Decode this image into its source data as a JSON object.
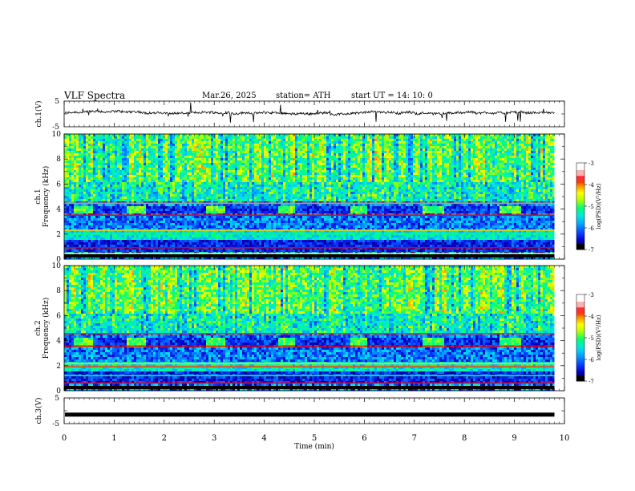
{
  "header": {
    "title": "VLF  Spectra",
    "date": "Mar.26, 2025",
    "station": "station= ATH",
    "start": "start  UT  =   14: 10: 0"
  },
  "colorbar": {
    "label": "log(PSD)(V²/Hz)",
    "ticks": [
      "-3",
      "-4",
      "-5",
      "-6",
      "-7"
    ],
    "colors": [
      "#000000",
      "#00008f",
      "#0000ff",
      "#00a0ff",
      "#00e0e0",
      "#00ff80",
      "#ffff00",
      "#ff8000",
      "#e00000",
      "#ffa0a0",
      "#ffffff"
    ]
  },
  "chart_data": [
    {
      "type": "line",
      "panel": "ch1-waveform",
      "ylabel": "ch.1(V)",
      "yticks": [
        "5",
        "-5"
      ],
      "ylim": [
        -5,
        5
      ],
      "description_values": {
        "baseline_volts": 0.3
      },
      "series": [
        {
          "values_sample": [
            0.3,
            0.6,
            -0.2,
            0.5,
            0.1,
            0.8,
            -0.4,
            0.4
          ]
        }
      ]
    },
    {
      "type": "heatmap",
      "panel": "ch1-spectrogram",
      "ylabel": "Frequency  (kHz)",
      "channel_label": "ch.1",
      "yticks": [
        "0",
        "2",
        "4",
        "6",
        "8",
        "10"
      ],
      "ylim": [
        0,
        10
      ],
      "band_kHz": [
        3.6,
        4.3
      ],
      "band_intervals_min": [
        [
          0.15,
          0.55
        ],
        [
          1.25,
          1.6
        ],
        [
          2.8,
          3.2
        ],
        [
          4.25,
          4.6
        ],
        [
          5.7,
          6.05
        ],
        [
          7.15,
          7.55
        ],
        [
          8.7,
          9.1
        ]
      ]
    },
    {
      "type": "heatmap",
      "panel": "ch2-spectrogram",
      "ylabel": "Frequency  (kHz)",
      "channel_label": "ch.2",
      "yticks": [
        "0",
        "2",
        "4",
        "6",
        "8",
        "10"
      ],
      "ylim": [
        0,
        10
      ],
      "band_kHz": [
        3.5,
        4.3
      ],
      "band_intervals_min": [
        [
          0.15,
          0.55
        ],
        [
          1.25,
          1.6
        ],
        [
          2.8,
          3.2
        ],
        [
          4.25,
          4.6
        ],
        [
          5.7,
          6.05
        ],
        [
          7.15,
          7.55
        ],
        [
          8.7,
          9.1
        ]
      ]
    },
    {
      "type": "line",
      "panel": "ch3-waveform",
      "ylabel": "ch.3(V)",
      "yticks": [
        "5",
        "-5"
      ],
      "ylim": [
        -5,
        5
      ],
      "series": [
        {
          "values_sample": [
            -1.5,
            -1.5,
            -1.5,
            -1.5
          ]
        }
      ]
    }
  ],
  "xaxis": {
    "label": "Time  (min)",
    "ticks": [
      "0",
      "1",
      "2",
      "3",
      "4",
      "5",
      "6",
      "7",
      "8",
      "9",
      "10"
    ],
    "xlim": [
      0,
      10
    ],
    "data_end_min": 9.8
  }
}
